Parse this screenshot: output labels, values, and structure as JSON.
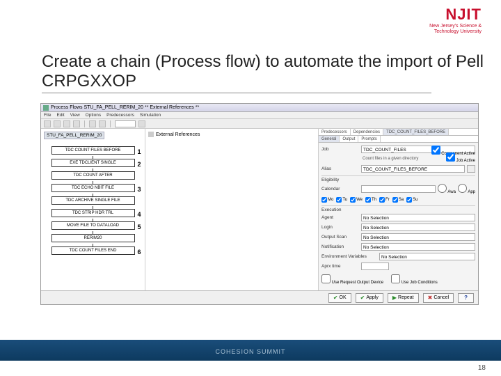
{
  "logo": {
    "main": "NJIT",
    "sub1": "New Jersey's Science &",
    "sub2": "Technology University"
  },
  "slide": {
    "title": "Create a chain (Process flow) to automate the import of Pell CRPGXXOP"
  },
  "window": {
    "title": "Process Flows STU_FA_PELL_RERIM_20 ** External References **",
    "menu": [
      "File",
      "Edit",
      "View",
      "Options",
      "Predecessors",
      "Simulation"
    ],
    "breadcrumb": "STU_FA_PELL_RERIM_20",
    "mid_header": "External References",
    "flow": [
      {
        "label": "TDC COUNT FILES BEFORE",
        "num": "1"
      },
      {
        "label": "EXE TDCLIENT SINGLE",
        "num": "2"
      },
      {
        "label": "TDC COUNT AFTER",
        "num": ""
      },
      {
        "label": "TDC ECHO NBIT FILE",
        "num": "3"
      },
      {
        "label": "TDC ARCHIVE SINGLE FILE",
        "num": ""
      },
      {
        "label": "TDC STRIP HDR TRL",
        "num": "4"
      },
      {
        "label": "MOVE FILE TO DATALOAD",
        "num": "5"
      },
      {
        "label": "RERIM20",
        "num": ""
      },
      {
        "label": "TDC COUNT FILES END",
        "num": "6"
      }
    ],
    "right_tabs_row1": [
      "Predecessors",
      "Dependencies",
      "TDC_COUNT_FILES_BEFORE"
    ],
    "right_tabs_row2": [
      "General",
      "Output",
      "Prompts"
    ],
    "rp": {
      "job_label": "Job",
      "job_val": "TDC_COUNT_FILES",
      "desc_val": "Count files in a given directory",
      "alias_label": "Alias",
      "alias_val": "TDC_COUNT_FILES_BEFORE",
      "cal_label": "Calendar",
      "cal_val": "",
      "comp_active": "Component Active",
      "job_active": "Job Active",
      "days": [
        "Mo",
        "Tu",
        "We",
        "Th",
        "Fr",
        "Sa",
        "Su"
      ],
      "exec": "Execution",
      "agent_label": "Agent",
      "agent_val": "No Selection",
      "login_label": "Login",
      "login_val": "No Selection",
      "scan_label": "Output Scan",
      "scan_val": "No Selection",
      "notif_label": "Notification",
      "notif_val": "No Selection",
      "env_label": "Environment Variables",
      "env_val": "No Selection",
      "aprx_label": "Aprx time",
      "aprx_val": "",
      "chk_out": "Use Request Output Device",
      "chk_cond": "Use Job Conditions",
      "eligibility": "Eligibility",
      "awa": "Awa",
      "app": "App"
    },
    "buttons": {
      "ok": "OK",
      "apply": "Apply",
      "repeat": "Repeat",
      "cancel": "Cancel",
      "help": "?"
    }
  },
  "footer": {
    "text": "COHESION SUMMIT",
    "page": "18"
  }
}
